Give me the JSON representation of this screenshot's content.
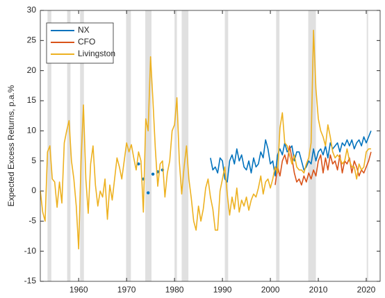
{
  "chart_data": {
    "type": "line",
    "y_label": "Expected Excess Returns, p.a.%",
    "xlim": [
      1952,
      2022.9
    ],
    "ylim": [
      -15,
      30
    ],
    "xticks": [
      1960,
      1970,
      1980,
      1990,
      2000,
      2010,
      2020
    ],
    "yticks": [
      -15,
      -10,
      -5,
      0,
      5,
      10,
      15,
      20,
      25,
      30
    ],
    "legend": "upper left",
    "shade_color": "#e0e0e0",
    "shaded_periods": [
      [
        1953.5,
        1954.3
      ],
      [
        1957.6,
        1958.3
      ],
      [
        1960.3,
        1961.1
      ],
      [
        1969.9,
        1970.9
      ],
      [
        1973.9,
        1975.2
      ],
      [
        1980.0,
        1980.5
      ],
      [
        1981.5,
        1982.9
      ],
      [
        1990.5,
        1991.2
      ],
      [
        2001.2,
        2001.9
      ],
      [
        2007.9,
        2009.5
      ],
      [
        2020.1,
        2020.4
      ]
    ],
    "series": [
      {
        "name": "NX",
        "color": "#0072bd",
        "x": [
          1972.5,
          1973.0,
          1973.5,
          1974.0,
          1974.5,
          1975.0,
          1975.5,
          1976.0,
          1976.5,
          1977.0,
          1977.5,
          1982.0,
          1987.5,
          1988.0,
          1988.5,
          1989.0,
          1989.5,
          1990.0,
          1990.5,
          1991.0,
          1991.5,
          1992.0,
          1992.5,
          1993.0,
          1993.5,
          1994.0,
          1994.5,
          1995.0,
          1995.5,
          1996.0,
          1996.5,
          1997.0,
          1997.5,
          1998.0,
          1998.5,
          1999.0,
          1999.5,
          2000.0,
          2000.5,
          2001.0,
          2001.5,
          2002.0,
          2002.5,
          2003.0,
          2003.5,
          2004.0,
          2004.5,
          2005.0,
          2005.5,
          2006.0,
          2006.5,
          2007.0,
          2007.5,
          2008.0,
          2008.5,
          2009.0,
          2009.5,
          2010.0,
          2010.5,
          2011.0,
          2011.5,
          2012.0,
          2012.5,
          2013.0,
          2013.5,
          2014.0,
          2014.5,
          2015.0,
          2015.5,
          2016.0,
          2016.5,
          2017.0,
          2017.5,
          2018.0,
          2018.5,
          2019.0,
          2019.5,
          2020.0,
          2020.5,
          2021.0
        ],
        "values": [
          4.5,
          null,
          2,
          null,
          -0.3,
          null,
          2.8,
          null,
          3.2,
          null,
          3.5,
          null,
          5.5,
          3.5,
          4,
          3,
          5.5,
          5,
          2,
          1.5,
          5,
          6,
          4.5,
          7,
          5,
          6,
          4,
          3.5,
          5,
          3,
          5.5,
          4,
          4.5,
          6.5,
          5.5,
          8.5,
          7,
          4.5,
          5,
          2.5,
          6,
          7,
          6,
          8,
          6.5,
          7,
          7.5,
          5,
          6.5,
          6.5,
          5,
          3.5,
          4,
          5,
          4.5,
          7,
          5,
          6.5,
          7,
          6,
          7.5,
          5.5,
          8,
          7,
          7.5,
          8,
          6.5,
          8,
          7.5,
          8.5,
          7.5,
          8.5,
          7,
          8,
          8.5,
          7.5,
          9,
          8,
          9,
          10
        ]
      },
      {
        "name": "CFO",
        "color": "#d95319",
        "x": [
          2001.0,
          2001.5,
          2002.0,
          2002.5,
          2003.0,
          2003.5,
          2004.0,
          2004.5,
          2005.0,
          2005.5,
          2006.0,
          2006.5,
          2007.0,
          2007.5,
          2008.0,
          2008.5,
          2009.0,
          2009.5,
          2010.0,
          2010.5,
          2011.0,
          2011.5,
          2012.0,
          2012.5,
          2013.0,
          2013.5,
          2014.0,
          2014.5,
          2015.0,
          2015.5,
          2016.0,
          2016.5,
          2017.0,
          2017.5,
          2018.0,
          2018.5,
          2019.0,
          2019.5,
          2020.0,
          2020.5,
          2021.0
        ],
        "values": [
          1,
          4,
          2.5,
          5,
          6,
          4.5,
          7.5,
          5.5,
          3,
          1.5,
          2,
          1,
          2.5,
          1.5,
          3,
          2,
          3.5,
          2.5,
          5,
          6,
          3,
          5.5,
          3.5,
          6,
          4.5,
          5,
          3.5,
          6,
          3,
          5,
          4.5,
          5.5,
          3,
          5,
          4,
          2.5,
          3.5,
          3,
          4,
          5,
          6.5
        ]
      },
      {
        "name": "Livingston",
        "color": "#edb120",
        "x": [
          1952.0,
          1952.5,
          1953.0,
          1953.5,
          1954.0,
          1954.5,
          1955.0,
          1955.5,
          1956.0,
          1956.5,
          1957.0,
          1957.5,
          1958.0,
          1958.5,
          1959.0,
          1959.5,
          1960.0,
          1960.5,
          1961.0,
          1961.5,
          1962.0,
          1962.5,
          1963.0,
          1963.5,
          1964.0,
          1964.5,
          1965.0,
          1965.5,
          1966.0,
          1966.5,
          1967.0,
          1967.5,
          1968.0,
          1968.5,
          1969.0,
          1969.5,
          1970.0,
          1970.5,
          1971.0,
          1971.5,
          1972.0,
          1972.5,
          1973.0,
          1973.5,
          1974.0,
          1974.5,
          1975.0,
          1975.5,
          1976.0,
          1976.5,
          1977.0,
          1977.5,
          1978.0,
          1978.5,
          1979.0,
          1979.5,
          1980.0,
          1980.5,
          1981.0,
          1981.5,
          1982.0,
          1982.5,
          1983.0,
          1983.5,
          1984.0,
          1984.5,
          1985.0,
          1985.5,
          1986.0,
          1986.5,
          1987.0,
          1987.5,
          1988.0,
          1988.5,
          1989.0,
          1989.5,
          1990.0,
          1990.5,
          1991.0,
          1991.5,
          1992.0,
          1992.5,
          1993.0,
          1993.5,
          1994.0,
          1994.5,
          1995.0,
          1995.5,
          1996.0,
          1996.5,
          1997.0,
          1997.5,
          1998.0,
          1998.5,
          1999.0,
          1999.5,
          2000.0,
          2000.5,
          2001.0,
          2001.5,
          2002.0,
          2002.5,
          2003.0,
          2003.5,
          2004.0,
          2004.5,
          2005.0,
          2005.5,
          2006.0,
          2006.5,
          2007.0,
          2007.5,
          2008.0,
          2008.5,
          2009.0,
          2009.5,
          2010.0,
          2010.5,
          2011.0,
          2011.5,
          2012.0,
          2012.5,
          2013.0,
          2013.5,
          2014.0,
          2014.5,
          2015.0,
          2015.5,
          2016.0,
          2016.5,
          2017.0,
          2017.5,
          2018.0,
          2018.5,
          2019.0,
          2019.5,
          2020.0,
          2020.5,
          2021.0
        ],
        "values": [
          0,
          -3.5,
          -5,
          6.5,
          7.5,
          2,
          1.5,
          -2.7,
          1.5,
          -2,
          8,
          10,
          11.7,
          5,
          2,
          -2.5,
          -9.6,
          5,
          14.3,
          2,
          -3.7,
          4.5,
          7.5,
          1,
          -2.5,
          0,
          -1,
          2,
          -4.7,
          1,
          -1.5,
          2,
          5.5,
          4,
          2,
          5,
          8,
          6.5,
          7.7,
          5.5,
          3.5,
          6.5,
          5,
          -3.5,
          12,
          10,
          22.3,
          15,
          7,
          0.8,
          4.5,
          5,
          -1,
          3,
          5,
          10,
          11,
          15.5,
          5,
          -0.5,
          4,
          7.5,
          2,
          -1.2,
          -5,
          -6.5,
          -2.5,
          -5,
          -3,
          0.5,
          2,
          -1,
          -3,
          -6.5,
          -6.5,
          0,
          2,
          4,
          -0.5,
          -4,
          -1,
          -3,
          0.5,
          -3.5,
          -1.5,
          -2.5,
          -1,
          -3.2,
          -1.5,
          -0.5,
          -1,
          0.5,
          2.5,
          -0.5,
          1.5,
          2,
          0.5,
          2,
          4,
          3,
          10.5,
          13,
          8,
          7.5,
          6,
          4.5,
          6,
          4,
          3.5,
          3.5,
          3,
          4.5,
          5.5,
          8,
          26.7,
          17,
          12,
          10,
          9,
          7.5,
          11,
          9,
          6.5,
          5.5,
          6,
          5.5,
          4.5,
          5,
          7,
          5,
          4,
          4,
          2,
          4.5,
          3.5,
          4,
          6.5,
          7,
          7
        ]
      }
    ]
  }
}
